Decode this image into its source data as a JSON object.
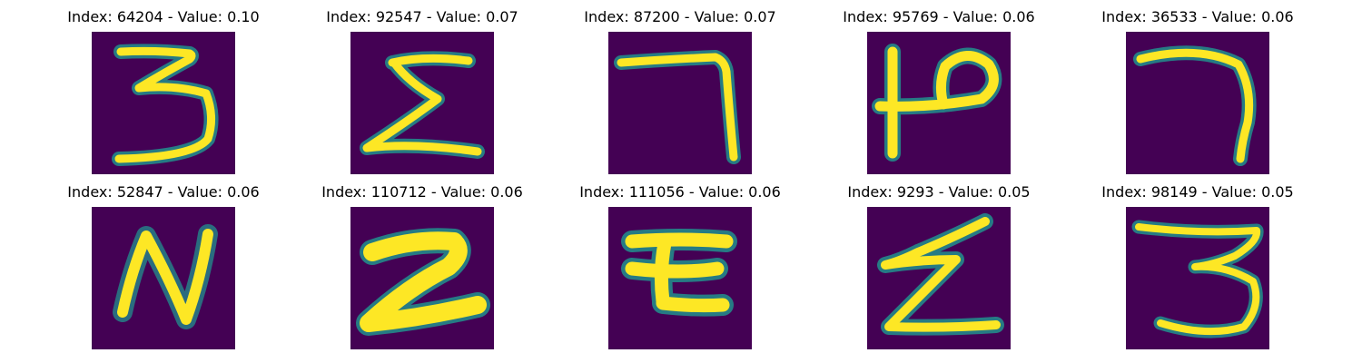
{
  "figure": {
    "background": "#ffffff",
    "image_background": "#440154",
    "stroke_core": "#fde725",
    "stroke_edge": "#21908d",
    "stroke_mid": "#5ec962",
    "panels": [
      {
        "title": "Index: 64204 - Value: 0.10",
        "glyph": "3"
      },
      {
        "title": "Index: 92547 - Value: 0.07",
        "glyph": "Σ"
      },
      {
        "title": "Index: 87200 - Value: 0.07",
        "glyph": "7"
      },
      {
        "title": "Index: 95769 - Value: 0.06",
        "glyph": "ȹ"
      },
      {
        "title": "Index: 36533 - Value: 0.06",
        "glyph": "7"
      },
      {
        "title": "Index: 52847 - Value: 0.06",
        "glyph": "N"
      },
      {
        "title": "Index: 110712 - Value: 0.06",
        "glyph": "2"
      },
      {
        "title": "Index: 111056 - Value: 0.06",
        "glyph": "Σ"
      },
      {
        "title": "Index: 9293 - Value: 0.05",
        "glyph": "Z"
      },
      {
        "title": "Index: 98149 - Value: 0.05",
        "glyph": "3"
      }
    ]
  }
}
